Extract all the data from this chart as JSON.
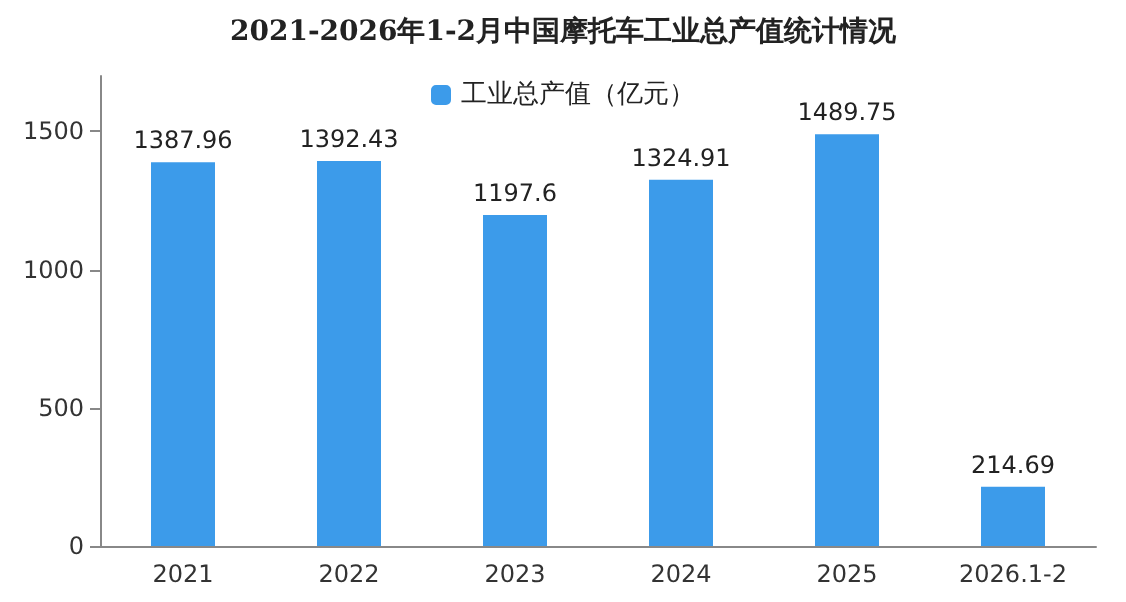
{
  "chart_data": {
    "type": "bar",
    "title": "2021-2026年1-2月中国摩托车工业总产值统计情况",
    "categories": [
      "2021",
      "2022",
      "2023",
      "2024",
      "2025",
      "2026.1-2"
    ],
    "series": [
      {
        "name": "工业总产值（亿元）",
        "color": "#3c9bea",
        "values": [
          1387.96,
          1392.43,
          1197.6,
          1324.91,
          1489.75,
          214.69
        ]
      }
    ],
    "ylim": [
      0,
      1700
    ],
    "yticks": [
      0,
      500,
      1000,
      1500
    ],
    "grid": false,
    "legend": "top",
    "data_labels": true
  }
}
